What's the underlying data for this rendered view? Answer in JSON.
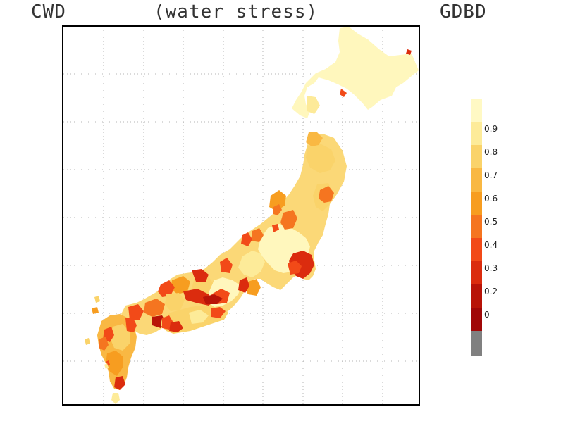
{
  "header": {
    "left_label": "CWD",
    "center_label": "(water stress)",
    "right_label": "GDBD"
  },
  "legend": {
    "items": [
      {
        "label": "",
        "color": "#fff9c4"
      },
      {
        "label": "0.9",
        "color": "#fdeb99"
      },
      {
        "label": "0.8",
        "color": "#fad36a"
      },
      {
        "label": "0.7",
        "color": "#f9b843"
      },
      {
        "label": "0.6",
        "color": "#f79d20"
      },
      {
        "label": "0.5",
        "color": "#f57520"
      },
      {
        "label": "0.4",
        "color": "#f24a18"
      },
      {
        "label": "0.3",
        "color": "#db2c0e"
      },
      {
        "label": "0.2",
        "color": "#b81408"
      },
      {
        "label": "0",
        "color": "#a00808"
      },
      {
        "label": "",
        "color": "#808080"
      }
    ]
  }
}
